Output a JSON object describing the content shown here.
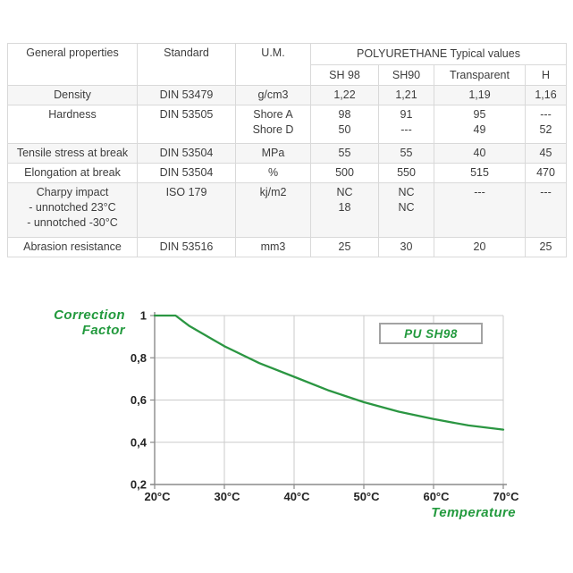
{
  "table": {
    "header": {
      "col_properties": "General properties",
      "col_standard": "Standard",
      "col_um": "U.M.",
      "group": "POLYURETHANE Typical values",
      "subcols": [
        "SH 98",
        "SH90",
        "Transparent",
        "H"
      ]
    },
    "rows": [
      {
        "property": [
          "Density"
        ],
        "standard": "DIN 53479",
        "um": [
          "g/cm3"
        ],
        "values": [
          [
            "1,22"
          ],
          [
            "1,21"
          ],
          [
            "1,19"
          ],
          [
            "1,16"
          ]
        ]
      },
      {
        "property": [
          "Hardness"
        ],
        "standard": "DIN 53505",
        "um": [
          "Shore A",
          "Shore D"
        ],
        "values": [
          [
            "98",
            "50"
          ],
          [
            "91",
            "---"
          ],
          [
            "95",
            "49"
          ],
          [
            "---",
            "52"
          ]
        ]
      },
      {
        "property": [
          "Tensile stress at break"
        ],
        "standard": "DIN 53504",
        "um": [
          "MPa"
        ],
        "values": [
          [
            "55"
          ],
          [
            "55"
          ],
          [
            "40"
          ],
          [
            "45"
          ]
        ]
      },
      {
        "property": [
          "Elongation at break"
        ],
        "standard": "DIN 53504",
        "um": [
          "%"
        ],
        "values": [
          [
            "500"
          ],
          [
            "550"
          ],
          [
            "515"
          ],
          [
            "470"
          ]
        ]
      },
      {
        "property": [
          "Charpy impact",
          "- unnotched 23°C",
          "- unnotched -30°C"
        ],
        "standard": "ISO 179",
        "um": [
          "kj/m2"
        ],
        "values": [
          [
            "NC",
            "18"
          ],
          [
            "NC",
            "NC"
          ],
          [
            "---"
          ],
          [
            "---"
          ]
        ]
      },
      {
        "property": [
          "Abrasion resistance"
        ],
        "standard": "DIN 53516",
        "um": [
          "mm3"
        ],
        "values": [
          [
            "25"
          ],
          [
            "30"
          ],
          [
            "20"
          ],
          [
            "25"
          ]
        ]
      }
    ]
  },
  "chart_data": {
    "type": "line",
    "title": "",
    "ylabel": "Correction Factor",
    "ylabel_lines": [
      "Correction",
      "Factor"
    ],
    "xlabel": "Temperature",
    "x_ticks": [
      "20°C",
      "30°C",
      "40°C",
      "50°C",
      "60°C",
      "70°C"
    ],
    "y_ticks": [
      "1",
      "0,8",
      "0,6",
      "0,4",
      "0,2"
    ],
    "x_grid": [
      20,
      30,
      40,
      50,
      60,
      70
    ],
    "y_grid": [
      1.0,
      0.8,
      0.6,
      0.4,
      0.2
    ],
    "xlim": [
      20,
      70
    ],
    "ylim": [
      0.2,
      1.0
    ],
    "grid": true,
    "legend": {
      "label": "PU SH98",
      "position": "top-right"
    },
    "series": [
      {
        "name": "PU SH98",
        "color": "#2b9642",
        "x": [
          20,
          23,
          25,
          30,
          35,
          40,
          45,
          50,
          55,
          60,
          65,
          70
        ],
        "y": [
          1.0,
          1.0,
          0.95,
          0.855,
          0.775,
          0.71,
          0.645,
          0.59,
          0.545,
          0.51,
          0.48,
          0.46
        ]
      }
    ]
  },
  "colors": {
    "accent_green": "#239a3e",
    "grid_line": "#cbcbcb",
    "axis_line": "#8a8a8a",
    "tick_text": "#242424",
    "table_border": "#d9d9d9",
    "row_shade": "#f6f6f6",
    "table_text": "#3d3d3d"
  }
}
